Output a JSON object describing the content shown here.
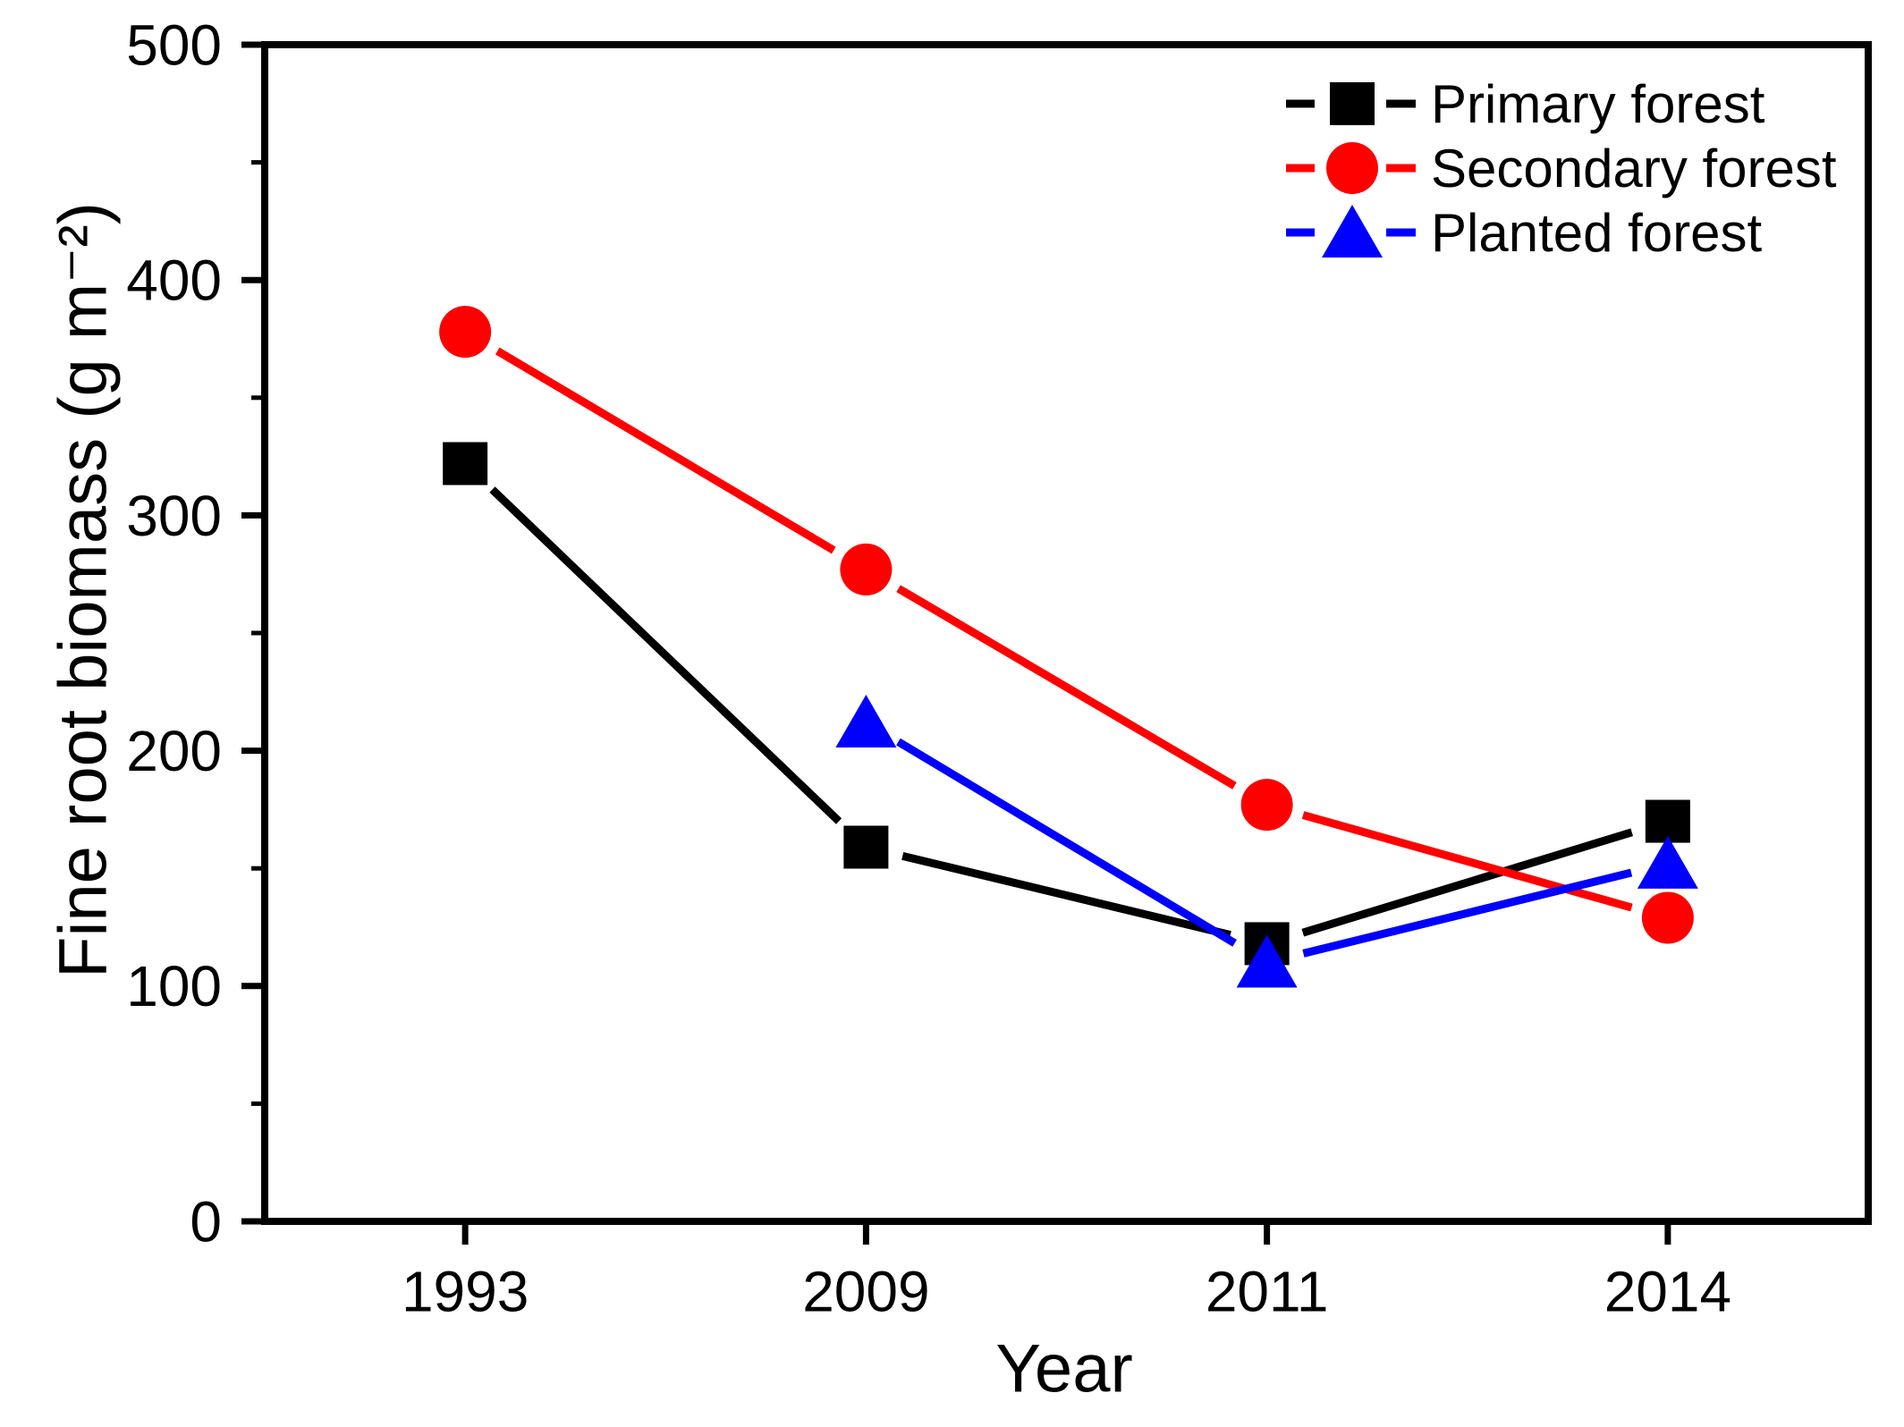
{
  "figure": {
    "background": "#ffffff",
    "axis_color": "#000000"
  },
  "chart_data": {
    "type": "line",
    "title": "",
    "xlabel": "Year",
    "ylabel": "Fine root biomass (g m⁻²)",
    "categories": [
      "1993",
      "2009",
      "2011",
      "2014"
    ],
    "ylim": [
      0,
      500
    ],
    "y_major_ticks": [
      0,
      100,
      200,
      300,
      400,
      500
    ],
    "y_minor_ticks": [
      50,
      150,
      250,
      350,
      450
    ],
    "grid": "off",
    "legend_position": "top-right-inside",
    "series": [
      {
        "name": "Primary forest",
        "color": "#000000",
        "marker": "square",
        "values": [
          322,
          159,
          118,
          170
        ]
      },
      {
        "name": "Secondary forest",
        "color": "#ff0000",
        "marker": "circle",
        "values": [
          378,
          277,
          177,
          129
        ]
      },
      {
        "name": "Planted forest",
        "color": "#0000ff",
        "marker": "triangle",
        "values": [
          null,
          212,
          110,
          152
        ]
      }
    ]
  }
}
